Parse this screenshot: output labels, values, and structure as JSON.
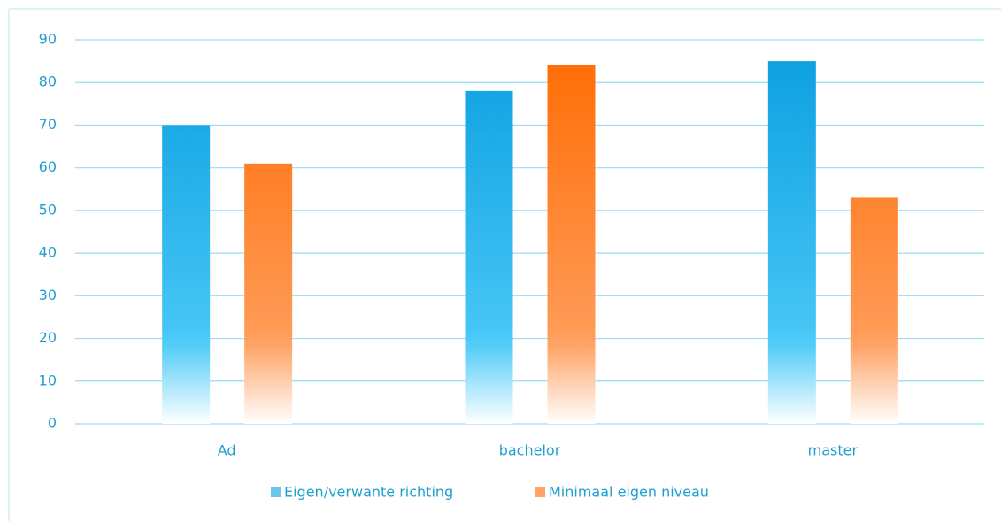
{
  "chart_data": {
    "type": "bar",
    "categories": [
      "Ad",
      "bachelor",
      "master"
    ],
    "series": [
      {
        "name": "Eigen/verwante richting",
        "color": "#0a9ee0",
        "values": [
          70,
          78,
          85
        ]
      },
      {
        "name": "Minimaal eigen niveau",
        "color": "#ff6a00",
        "values": [
          61,
          84,
          53
        ]
      }
    ],
    "ylim": [
      0,
      90
    ],
    "yticks": [
      0,
      10,
      20,
      30,
      40,
      50,
      60,
      70,
      80,
      90
    ],
    "grid": true,
    "legend": "bottom"
  }
}
